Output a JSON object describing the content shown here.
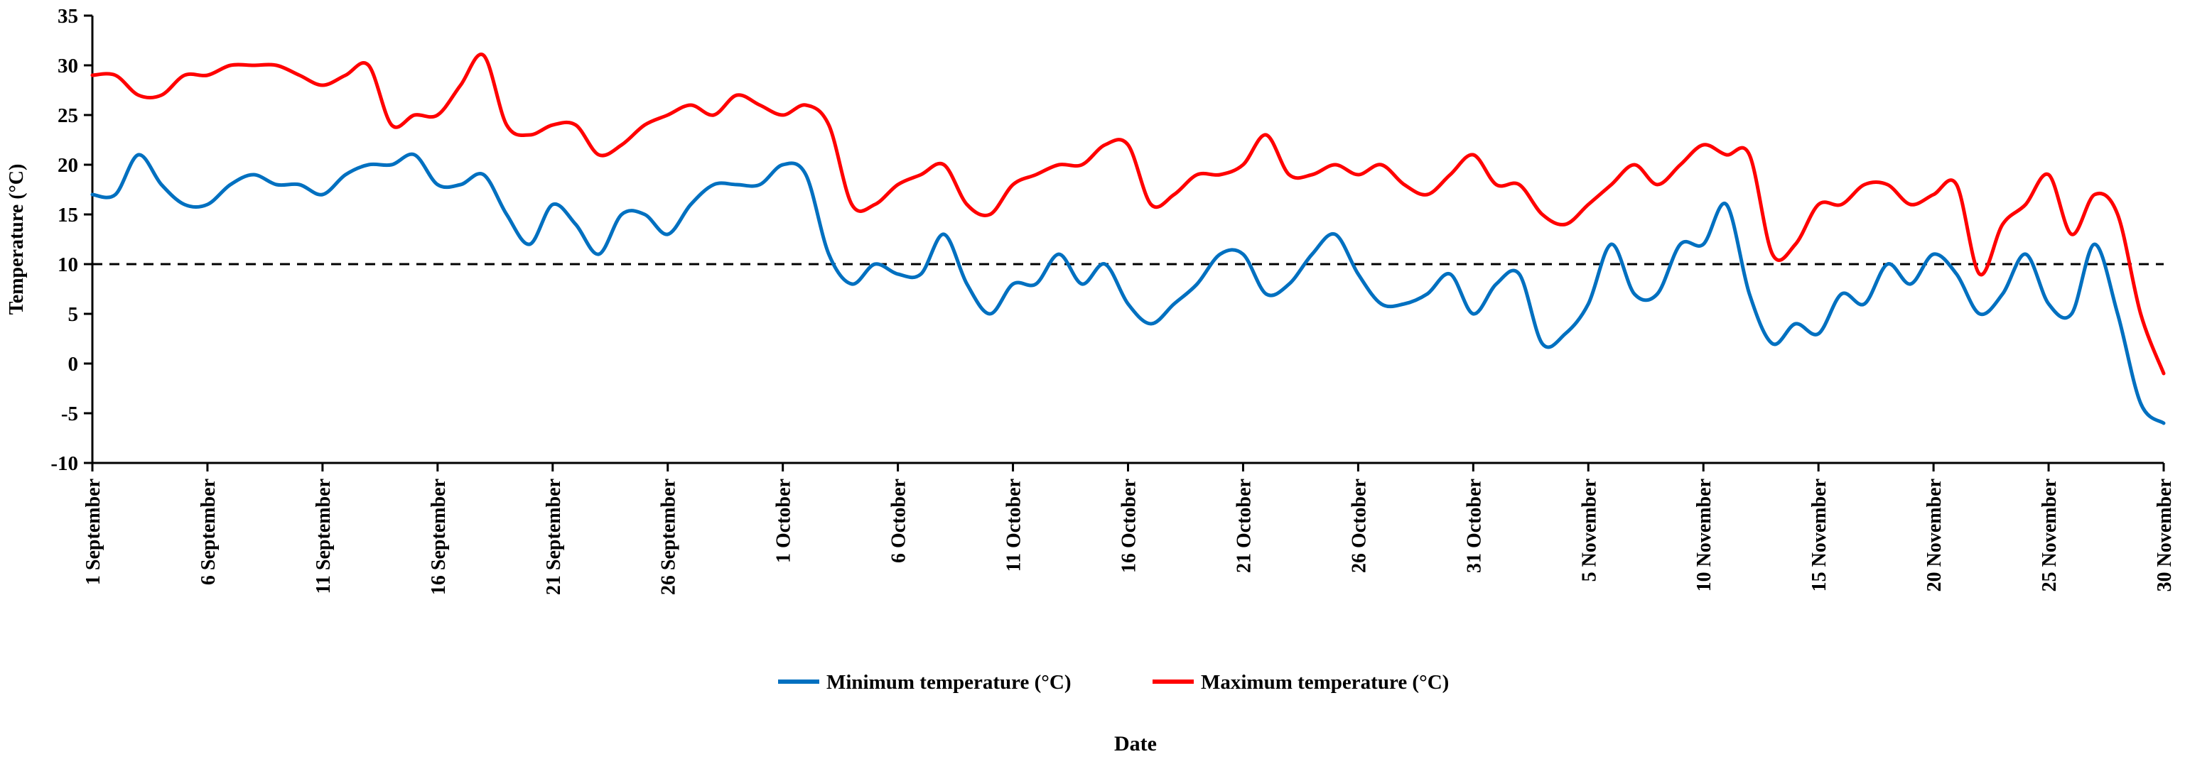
{
  "chart_data": {
    "type": "line",
    "title": "",
    "xlabel": "Date",
    "ylabel": "Temperature (°C)",
    "ylim": [
      -10,
      35
    ],
    "yticks": [
      35,
      30,
      25,
      20,
      15,
      10,
      5,
      0,
      -5,
      -10
    ],
    "grid": false,
    "legend_position": "bottom-center",
    "reference_line": {
      "y": 10,
      "style": "dashed",
      "color": "#000000"
    },
    "x_tick_labels": [
      "1 September",
      "6 September",
      "11 September",
      "16 September",
      "21 September",
      "26 September",
      "1 October",
      "6 October",
      "11 October",
      "16 October",
      "21 October",
      "26 October",
      "31 October",
      "5 November",
      "10 November",
      "15 November",
      "20 November",
      "25 November",
      "30 November"
    ],
    "x_tick_days": [
      0,
      5,
      10,
      15,
      20,
      25,
      30,
      35,
      40,
      45,
      50,
      55,
      60,
      65,
      70,
      75,
      80,
      85,
      90
    ],
    "x_day_range": [
      0,
      90
    ],
    "series": [
      {
        "name": "Minimum temperature (°C)",
        "color": "#0070C0",
        "values": [
          17,
          17,
          21,
          18,
          16,
          16,
          18,
          19,
          18,
          18,
          17,
          19,
          20,
          20,
          21,
          18,
          18,
          19,
          15,
          12,
          16,
          14,
          11,
          15,
          15,
          13,
          16,
          18,
          18,
          18,
          20,
          19,
          11,
          8,
          10,
          9,
          9,
          13,
          8,
          5,
          8,
          8,
          11,
          8,
          10,
          6,
          4,
          6,
          8,
          11,
          11,
          7,
          8,
          11,
          13,
          9,
          6,
          6,
          7,
          9,
          5,
          8,
          9,
          2,
          3,
          6,
          12,
          7,
          7,
          12,
          12,
          16,
          7,
          2,
          4,
          3,
          7,
          6,
          10,
          8,
          11,
          9,
          5,
          7,
          11,
          6,
          5,
          12,
          5,
          -4,
          -6
        ]
      },
      {
        "name": "Maximum temperature (°C)",
        "color": "#FF0000",
        "values": [
          29,
          29,
          27,
          27,
          29,
          29,
          30,
          30,
          30,
          29,
          28,
          29,
          30,
          24,
          25,
          25,
          28,
          31,
          24,
          23,
          24,
          24,
          21,
          22,
          24,
          25,
          26,
          25,
          27,
          26,
          25,
          26,
          24,
          16,
          16,
          18,
          19,
          20,
          16,
          15,
          18,
          19,
          20,
          20,
          22,
          22,
          16,
          17,
          19,
          19,
          20,
          23,
          19,
          19,
          20,
          19,
          20,
          18,
          17,
          19,
          21,
          18,
          18,
          15,
          14,
          16,
          18,
          20,
          18,
          20,
          22,
          21,
          21,
          11,
          12,
          16,
          16,
          18,
          18,
          16,
          17,
          18,
          9,
          14,
          16,
          19,
          13,
          17,
          15,
          5,
          -1
        ]
      }
    ]
  }
}
